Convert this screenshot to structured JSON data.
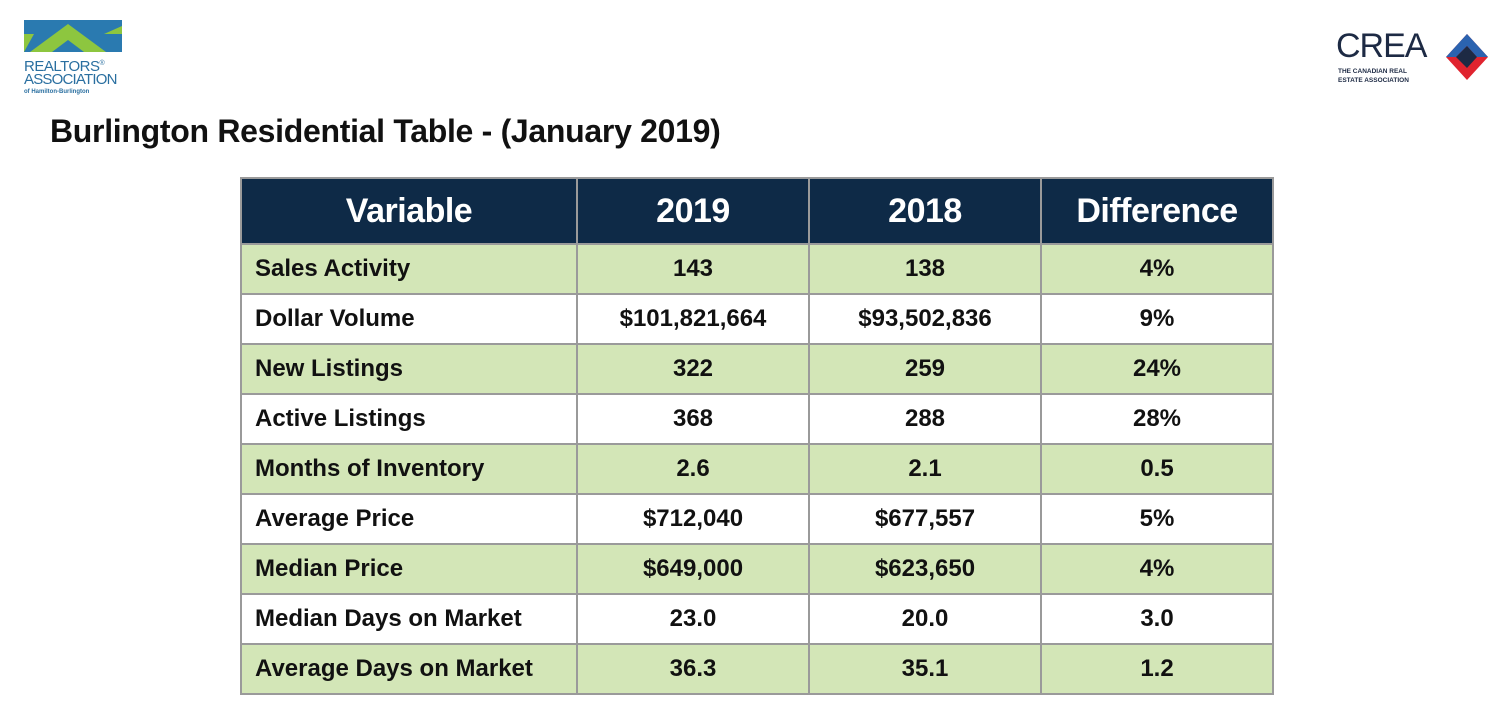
{
  "logos": {
    "left": {
      "line1": "REALTORS",
      "registered": "®",
      "line2": "ASSOCIATION",
      "line3": "of Hamilton-Burlington"
    },
    "right": {
      "word": "CREA",
      "sub1": "THE CANADIAN REAL",
      "sub2": "ESTATE ASSOCIATION"
    }
  },
  "title": "Burlington Residential Table - (January 2019)",
  "table": {
    "headers": [
      "Variable",
      "2019",
      "2018",
      "Difference"
    ],
    "rows": [
      {
        "variable": "Sales Activity",
        "y2019": "143",
        "y2018": "138",
        "difference": "4%"
      },
      {
        "variable": "Dollar Volume",
        "y2019": "$101,821,664",
        "y2018": "$93,502,836",
        "difference": "9%"
      },
      {
        "variable": "New Listings",
        "y2019": "322",
        "y2018": "259",
        "difference": "24%"
      },
      {
        "variable": "Active Listings",
        "y2019": "368",
        "y2018": "288",
        "difference": "28%"
      },
      {
        "variable": "Months of Inventory",
        "y2019": "2.6",
        "y2018": "2.1",
        "difference": "0.5"
      },
      {
        "variable": "Average Price",
        "y2019": "$712,040",
        "y2018": "$677,557",
        "difference": "5%"
      },
      {
        "variable": "Median Price",
        "y2019": "$649,000",
        "y2018": "$623,650",
        "difference": "4%"
      },
      {
        "variable": "Median Days on Market",
        "y2019": "23.0",
        "y2018": "20.0",
        "difference": "3.0"
      },
      {
        "variable": "Average Days on Market",
        "y2019": "36.3",
        "y2018": "35.1",
        "difference": "1.2"
      }
    ]
  },
  "colors": {
    "header_bg": "#0e2a47",
    "row_green": "#d3e6b7",
    "row_white": "#ffffff",
    "border": "#9a9a9a",
    "realtors_blue": "#2a6fa0",
    "realtors_green": "#8dc63f",
    "crea_navy": "#1d2a44",
    "crea_red": "#e0242f",
    "crea_blue": "#2b63b0"
  }
}
